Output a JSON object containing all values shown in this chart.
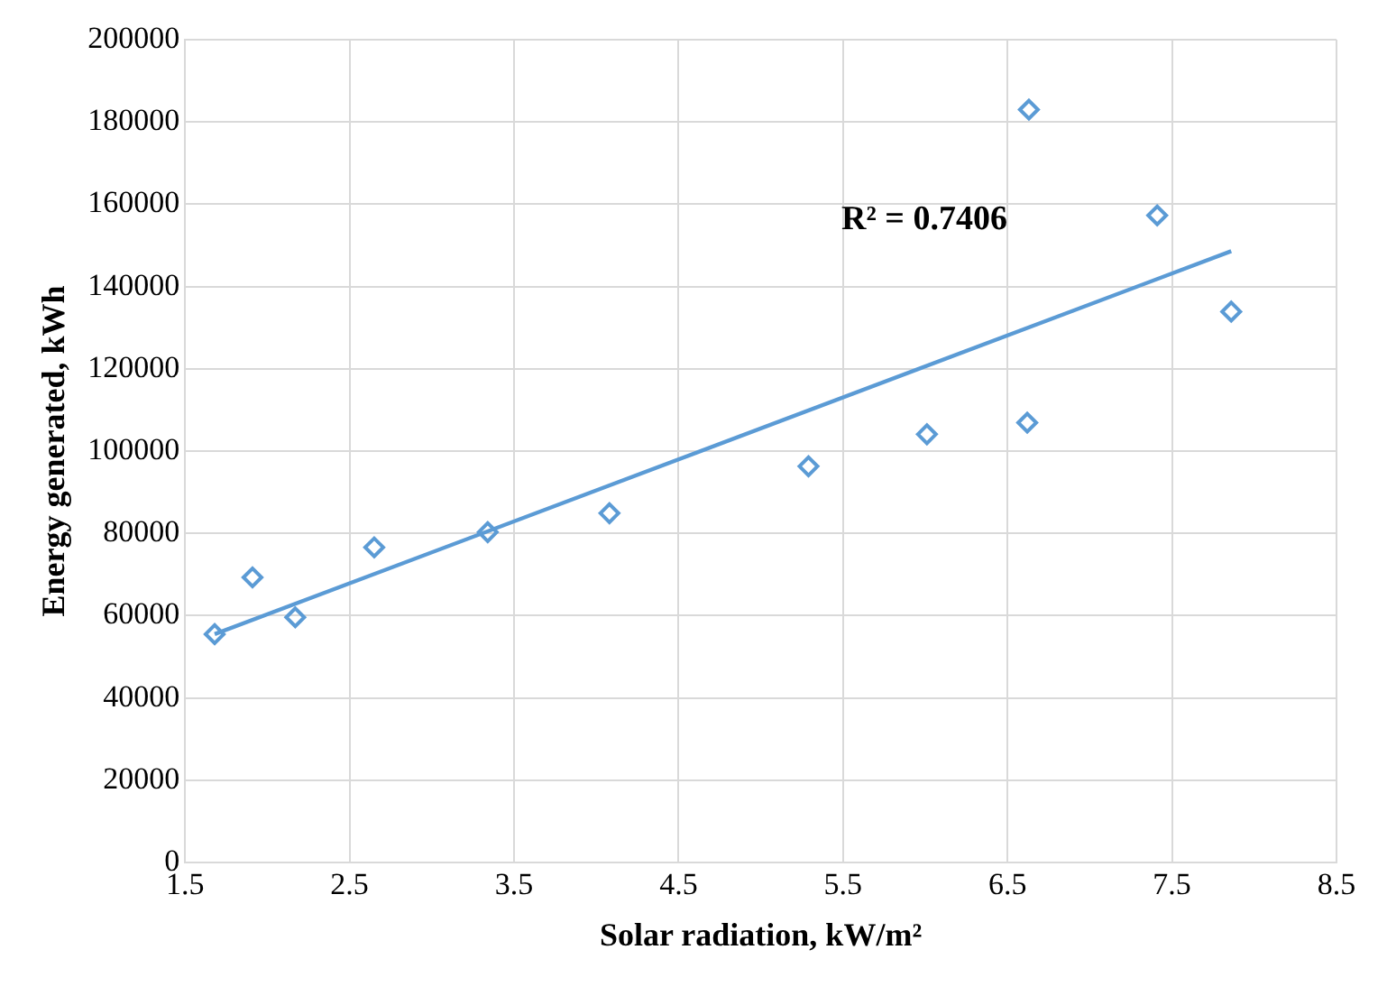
{
  "chart_data": {
    "type": "scatter",
    "xlabel": "Solar radiation, kW/m²",
    "ylabel": "Energy generated, kWh",
    "series": [
      {
        "color": "#5b9bd5",
        "x": [
          1.68,
          1.91,
          2.17,
          2.65,
          3.34,
          4.08,
          5.29,
          6.01,
          6.62,
          6.63,
          7.41,
          7.86
        ],
        "values": [
          55500,
          69300,
          59600,
          76600,
          80300,
          84900,
          96300,
          104100,
          106900,
          183000,
          157300,
          133900
        ]
      },
      {
        "type": "line",
        "color": "#5b9bd5",
        "x": [
          1.68,
          7.86
        ],
        "values": [
          55500,
          148600
        ],
        "marker": "none"
      }
    ],
    "annotations": [
      "R² = 0.7406"
    ],
    "xlim": [
      1.5,
      8.5
    ],
    "xticks": [
      1.5,
      2.5,
      3.5,
      4.5,
      5.5,
      6.5,
      7.5,
      8.5
    ],
    "ylim": [
      0,
      200000
    ],
    "yticks": [
      0,
      20000,
      40000,
      60000,
      80000,
      100000,
      120000,
      140000,
      160000,
      180000,
      200000
    ],
    "grid": true,
    "marker": "diamond",
    "legend": false
  }
}
